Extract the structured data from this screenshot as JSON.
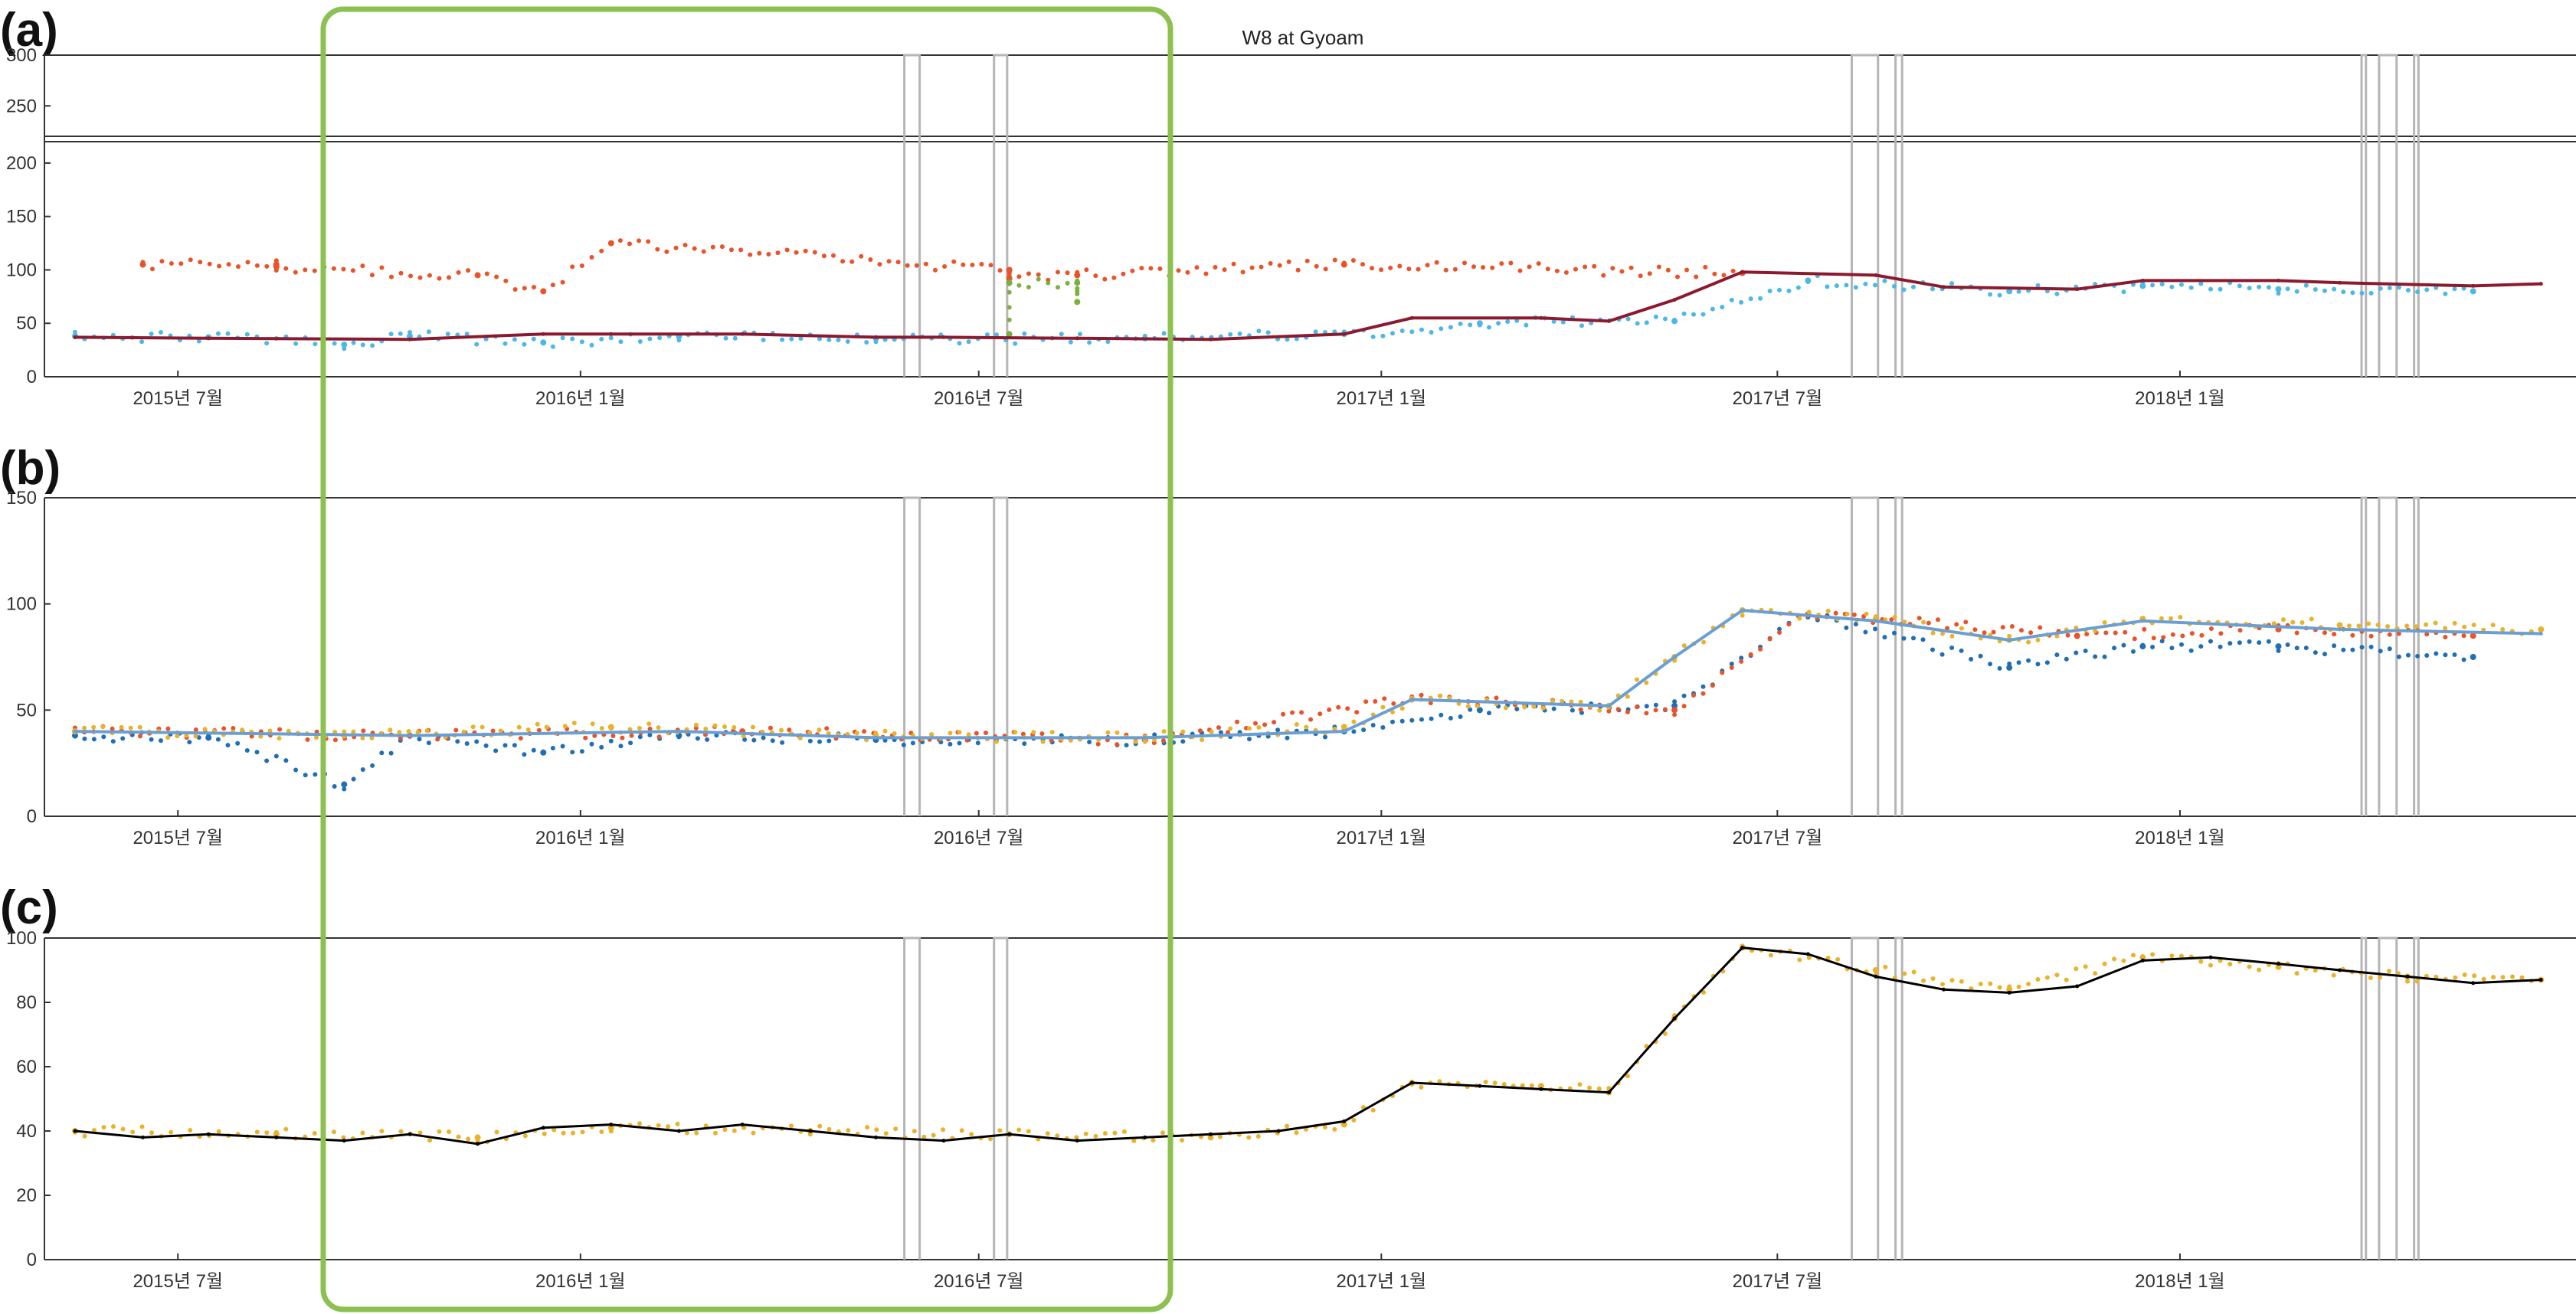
{
  "chart_data": [
    {
      "type": "scatter",
      "panel_label": "(a)",
      "title": "W8 at Gyoam",
      "ylim": [
        0,
        300
      ],
      "broken_axis": true,
      "yticks": [
        0,
        50,
        100,
        150,
        200,
        250,
        300
      ],
      "xticks": [
        "2015년 7월",
        "2016년 1월",
        "2016년 7월",
        "2017년 1월",
        "2017년 7월",
        "2018년 1월"
      ],
      "grid": false,
      "series": [
        {
          "color": "#4db8e8",
          "role": "raw observations",
          "x": [
            "2015-05",
            "2015-07",
            "2015-09",
            "2015-10",
            "2015-12",
            "2016-02",
            "2016-05",
            "2016-09",
            "2016-12",
            "2017-02",
            "2017-05",
            "2017-07",
            "2017-10",
            "2017-12",
            "2018-02",
            "2018-05"
          ],
          "values": [
            38,
            37,
            30,
            38,
            32,
            38,
            36,
            36,
            40,
            50,
            52,
            90,
            80,
            85,
            82,
            80
          ]
        },
        {
          "color": "#e8532a",
          "role": "flagged outliers",
          "x": [
            "2015-06",
            "2015-08",
            "2015-08",
            "2015-11",
            "2015-12",
            "2016-01",
            "2016-07",
            "2016-07",
            "2016-08",
            "2016-12",
            "2017-06"
          ],
          "values": [
            105,
            105,
            103,
            95,
            80,
            125,
            100,
            92,
            95,
            105,
            97
          ]
        },
        {
          "color": "#7bb041",
          "role": "anomaly segment",
          "x": [
            "2016-07",
            "2016-07",
            "2016-08",
            "2016-08"
          ],
          "values": [
            40,
            88,
            88,
            70
          ]
        },
        {
          "color": "#8b1a2e",
          "role": "baseline",
          "x": [
            "2015-05",
            "2015-07",
            "2015-10",
            "2015-12",
            "2016-01",
            "2016-03",
            "2016-05",
            "2016-06",
            "2016-08",
            "2016-10",
            "2016-12",
            "2017-01",
            "2017-03",
            "2017-04",
            "2017-05",
            "2017-06",
            "2017-08",
            "2017-09",
            "2017-11",
            "2017-12",
            "2018-02",
            "2018-03",
            "2018-05",
            "2018-06"
          ],
          "values": [
            37,
            36,
            35,
            40,
            40,
            40,
            37,
            37,
            36,
            35,
            40,
            55,
            55,
            52,
            72,
            98,
            95,
            84,
            82,
            90,
            90,
            88,
            85,
            87
          ]
        }
      ]
    },
    {
      "type": "scatter",
      "panel_label": "(b)",
      "ylim": [
        0,
        150
      ],
      "yticks": [
        0,
        50,
        100,
        150
      ],
      "xticks": [
        "2015년 7월",
        "2016년 1월",
        "2016년 7월",
        "2017년 1월",
        "2017년 7월",
        "2018년 1월"
      ],
      "grid": false,
      "series": [
        {
          "color": "#1f6fb5",
          "role": "raw observations",
          "x": [
            "2015-05",
            "2015-07",
            "2015-09",
            "2015-10",
            "2015-12",
            "2016-02",
            "2016-05",
            "2016-09",
            "2016-12",
            "2017-02",
            "2017-05",
            "2017-07",
            "2017-10",
            "2017-12",
            "2018-02",
            "2018-05"
          ],
          "values": [
            38,
            37,
            15,
            38,
            30,
            38,
            36,
            36,
            40,
            50,
            52,
            95,
            70,
            80,
            80,
            75
          ]
        },
        {
          "color": "#e8532a",
          "role": "corrected points",
          "x": [
            "2015-05",
            "2015-10",
            "2016-03",
            "2016-09",
            "2017-01",
            "2017-05",
            "2017-07",
            "2017-11",
            "2018-02",
            "2018-05"
          ],
          "values": [
            40,
            38,
            40,
            36,
            55,
            50,
            95,
            85,
            88,
            85
          ]
        },
        {
          "color": "#eab22a",
          "role": "filled series",
          "x": [
            "2015-05",
            "2015-09",
            "2016-01",
            "2016-05",
            "2016-09",
            "2016-12",
            "2017-01",
            "2017-04",
            "2017-05",
            "2017-06",
            "2017-08",
            "2017-10",
            "2017-12",
            "2018-03",
            "2018-06"
          ],
          "values": [
            40,
            38,
            42,
            38,
            37,
            42,
            55,
            52,
            75,
            97,
            93,
            83,
            93,
            90,
            88
          ]
        },
        {
          "color": "#6a9fd4",
          "role": "interpolated line",
          "x": [
            "2015-05",
            "2015-10",
            "2016-02",
            "2016-05",
            "2016-09",
            "2016-12",
            "2017-01",
            "2017-04",
            "2017-05",
            "2017-06",
            "2017-08",
            "2017-10",
            "2017-12",
            "2018-03",
            "2018-06"
          ],
          "values": [
            40,
            38,
            40,
            37,
            37,
            40,
            55,
            52,
            75,
            97,
            92,
            83,
            92,
            88,
            86
          ]
        }
      ]
    },
    {
      "type": "line",
      "panel_label": "(c)",
      "ylim": [
        0,
        100
      ],
      "yticks": [
        0,
        20,
        40,
        60,
        80,
        100
      ],
      "xticks": [
        "2015년 7월",
        "2016년 1월",
        "2016년 7월",
        "2017년 1월",
        "2017년 7월",
        "2018년 1월"
      ],
      "grid": false,
      "series": [
        {
          "color": "#eab22a",
          "role": "daily values",
          "x": [
            "2015-05",
            "2015-08",
            "2015-11",
            "2016-01",
            "2016-04",
            "2016-07",
            "2016-10",
            "2016-12",
            "2017-01",
            "2017-03",
            "2017-04",
            "2017-05",
            "2017-06",
            "2017-08",
            "2017-10",
            "2017-12",
            "2018-02",
            "2018-04",
            "2018-06"
          ],
          "values": [
            40,
            39,
            38,
            41,
            40,
            39,
            38,
            42,
            55,
            54,
            52,
            75,
            97,
            90,
            84,
            94,
            91,
            88,
            87
          ]
        },
        {
          "color": "#000000",
          "role": "smoothed line",
          "x": [
            "2015-05",
            "2015-06",
            "2015-07",
            "2015-08",
            "2015-09",
            "2015-10",
            "2015-11",
            "2015-12",
            "2016-01",
            "2016-02",
            "2016-03",
            "2016-04",
            "2016-05",
            "2016-06",
            "2016-07",
            "2016-08",
            "2016-09",
            "2016-10",
            "2016-11",
            "2016-12",
            "2017-01",
            "2017-02",
            "2017-03",
            "2017-04",
            "2017-05",
            "2017-06",
            "2017-07",
            "2017-08",
            "2017-09",
            "2017-10",
            "2017-11",
            "2017-12",
            "2018-01",
            "2018-02",
            "2018-03",
            "2018-04",
            "2018-05",
            "2018-06"
          ],
          "values": [
            40,
            38,
            39,
            38,
            37,
            39,
            36,
            41,
            42,
            40,
            42,
            40,
            38,
            37,
            39,
            37,
            38,
            39,
            40,
            43,
            55,
            54,
            53,
            52,
            75,
            97,
            95,
            88,
            84,
            83,
            85,
            93,
            94,
            92,
            90,
            88,
            86,
            87
          ]
        }
      ]
    }
  ]
}
